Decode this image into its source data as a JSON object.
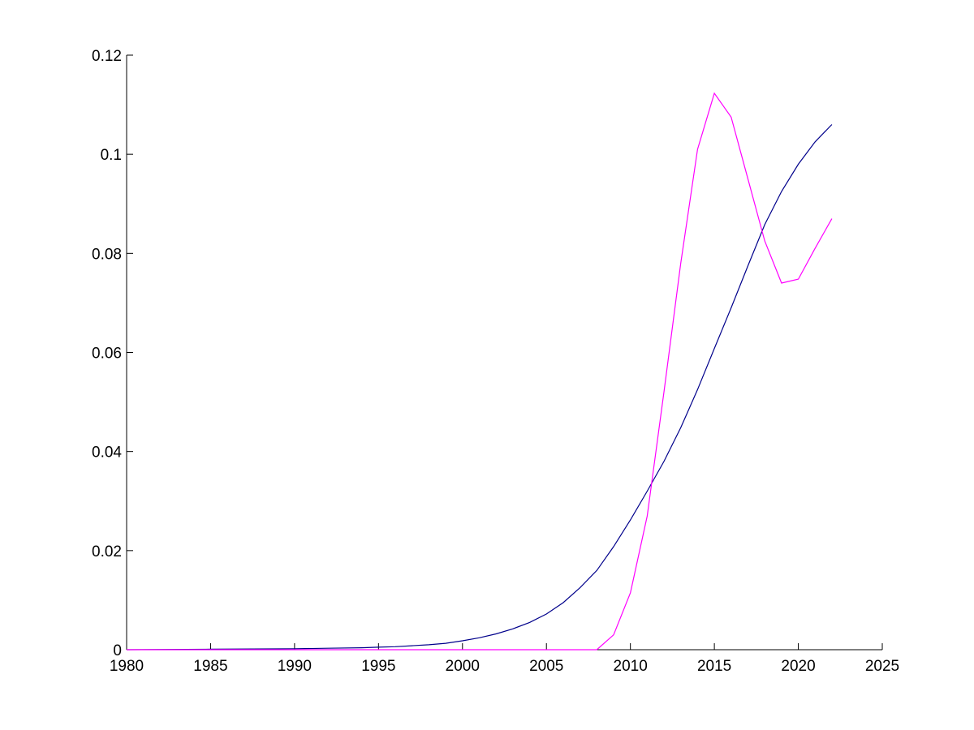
{
  "chart_data": {
    "type": "line",
    "title": "",
    "xlabel": "",
    "ylabel": "",
    "xlim": [
      1980,
      2025
    ],
    "ylim": [
      0,
      0.12
    ],
    "xticks": [
      1980,
      1985,
      1990,
      1995,
      2000,
      2005,
      2010,
      2015,
      2020,
      2025
    ],
    "xtick_labels": [
      "1980",
      "1985",
      "1990",
      "1995",
      "2000",
      "2005",
      "2010",
      "2015",
      "2020",
      "2025"
    ],
    "yticks": [
      0,
      0.02,
      0.04,
      0.06,
      0.08,
      0.1,
      0.12
    ],
    "ytick_labels": [
      "0",
      "0.02",
      "0.04",
      "0.06",
      "0.08",
      "0.1",
      "0.12"
    ],
    "grid": false,
    "legend": "none",
    "series": [
      {
        "color": "#00008b",
        "x": [
          1980,
          1985,
          1990,
          1992,
          1994,
          1995,
          1996,
          1997,
          1998,
          1999,
          2000,
          2001,
          2002,
          2003,
          2004,
          2005,
          2006,
          2007,
          2008,
          2009,
          2010,
          2011,
          2012,
          2013,
          2014,
          2015,
          2016,
          2017,
          2018,
          2019,
          2020,
          2021,
          2022
        ],
        "y": [
          0,
          0.0001,
          0.0002,
          0.0003,
          0.0004,
          0.0005,
          0.0006,
          0.0008,
          0.001,
          0.0013,
          0.0018,
          0.0024,
          0.0032,
          0.0042,
          0.0055,
          0.0072,
          0.0095,
          0.0125,
          0.016,
          0.0208,
          0.0262,
          0.032,
          0.038,
          0.0448,
          0.0525,
          0.0608,
          0.069,
          0.0775,
          0.0858,
          0.0925,
          0.098,
          0.1025,
          0.106
        ]
      },
      {
        "color": "#ff00ff",
        "x": [
          1980,
          2008,
          2009,
          2010,
          2011,
          2012,
          2013,
          2014,
          2015,
          2016,
          2017,
          2018,
          2019,
          2020,
          2021,
          2022
        ],
        "y": [
          0,
          0,
          0.003,
          0.0115,
          0.027,
          0.052,
          0.078,
          0.101,
          0.1123,
          0.1075,
          0.095,
          0.0825,
          0.074,
          0.0748,
          0.081,
          0.087
        ]
      }
    ]
  }
}
